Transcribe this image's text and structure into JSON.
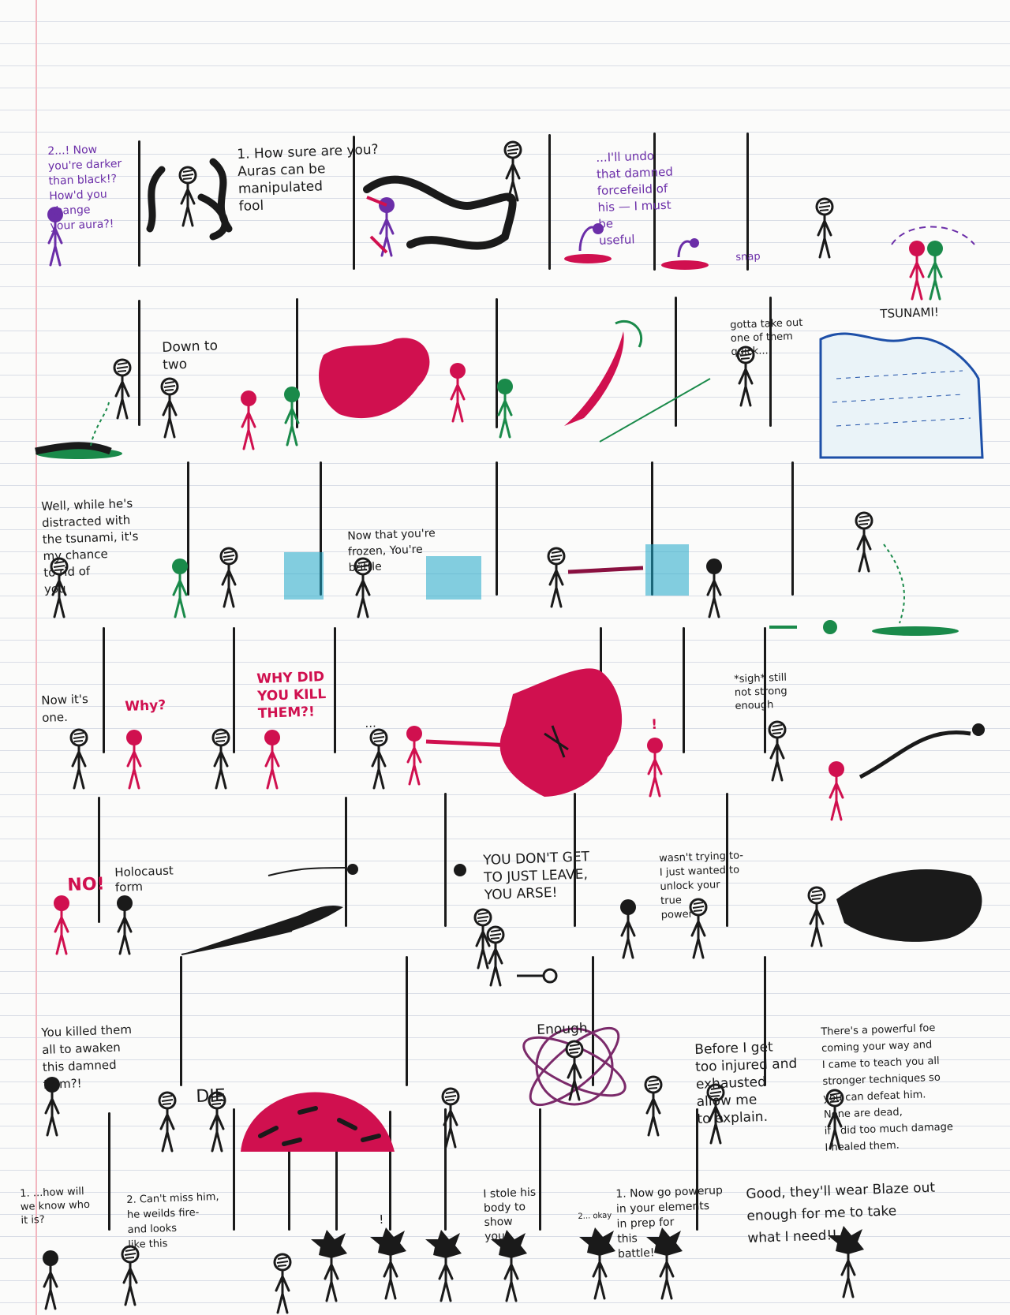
{
  "colors": {
    "ink": "#1a1a1a",
    "purple": "#6b2ea8",
    "red": "#d0104f",
    "green": "#1a8a4a",
    "cyan": "#1fa7c9",
    "blue": "#1d4fa8",
    "margin": "#f2b6bf"
  },
  "row1": {
    "p1_text": "2...! Now\nyou're darker\nthan black!?\nHow'd you\nchange\nyour aura?!",
    "p2_text": "1. How sure are you?\nAuras can be\nmanipulated\nfool",
    "p4_text": "...I'll undo\nthat damned\nforcefeild of\nhis — I must\nbe\nuseful",
    "p4_sfx": "snap"
  },
  "row2": {
    "p2_text": "Down to\ntwo",
    "p5_text": "gotta take out\none of them\nquick...",
    "p6_text": "TSUNAMI!"
  },
  "row3": {
    "p1_text": "Well, while he's\ndistracted with\nthe tsunami, it's\nmy chance\nto rid of\nyou",
    "p3_text": "Now that you're\nfrozen, You're\nbrittle"
  },
  "row4": {
    "p1_text": "Now it's\none.",
    "p2_text": "Why?",
    "p3_text": "WHY DID\nYOU KILL\nTHEM?!",
    "p4_text": "...",
    "p5_text": "!",
    "p6_text": "*sigh* still\nnot strong\nenough"
  },
  "row5": {
    "p1_text": "NO!",
    "p2_text": "Holocaust\nform",
    "p4_text": "YOU DON'T GET\nTO JUST LEAVE,\nYOU ARSE!",
    "p5_text": "wasn't trying to-\nI just wanted to\nunlock your\ntrue\npower"
  },
  "row6": {
    "p1_text": "You killed them\nall to awaken\nthis damned\nform?!",
    "p2_text": "DIE",
    "p3_text": "Enough",
    "p4_text": "Before I get\ntoo injured and\nexhausted\nallow me\nto explain.",
    "p5_text": "There's a powerful foe\ncoming your way and\nI came to teach you all\nstronger techniques so\nyou can defeat him.\nNone are dead,\nif I did too much damage\nI healed them."
  },
  "row7": {
    "p1_text": "1. ...how will\nwe know who\nit is?",
    "p2_text": "2. Can't miss him,\nhe weilds fire-\nand looks\nlike this",
    "p4_text": "!",
    "p5_text": "I stole his\nbody to\nshow\nyou",
    "p6_text": "2... okay",
    "p7_text": "1. Now go powerup\nin your elements\nin prep for\nthis\nbattle!",
    "p8_text": "Good, they'll wear Blaze out\nenough for me to take\nwhat I need!!"
  }
}
